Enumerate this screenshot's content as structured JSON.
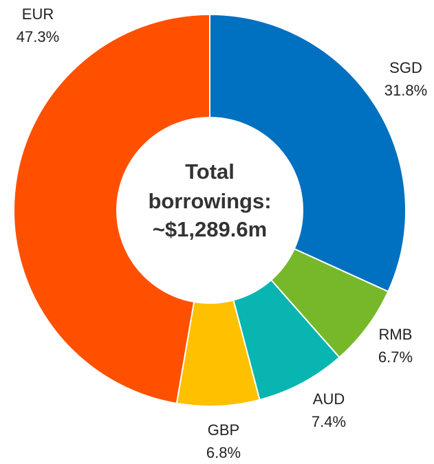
{
  "chart_data": {
    "type": "donut",
    "categories": [
      "SGD",
      "RMB",
      "AUD",
      "GBP",
      "EUR"
    ],
    "values": [
      31.8,
      6.7,
      7.4,
      6.8,
      47.3
    ],
    "value_labels": [
      "31.8%",
      "6.7%",
      "7.4%",
      "6.8%",
      "47.3%"
    ],
    "colors": [
      "#0070c0",
      "#76b82a",
      "#08b5b0",
      "#ffc000",
      "#ff5000"
    ],
    "center_label": [
      "Total",
      "borrowings:",
      "~$1,289.6m"
    ]
  }
}
